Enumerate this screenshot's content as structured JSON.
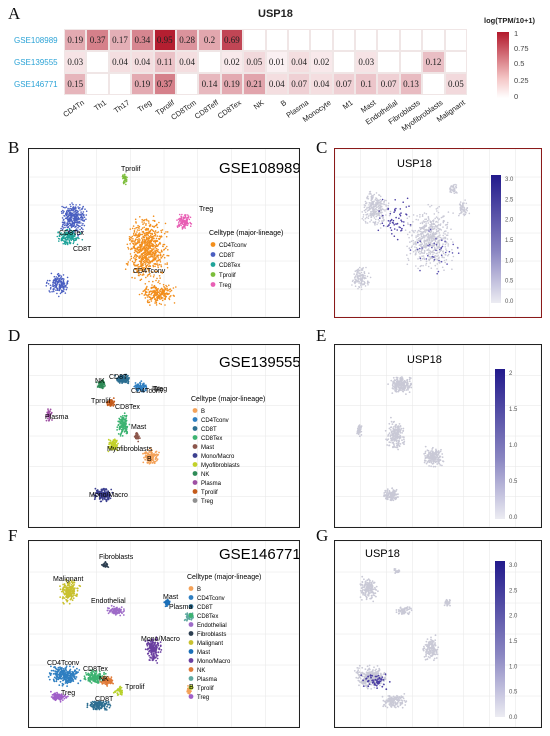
{
  "panel_letters": {
    "A": "A",
    "B": "B",
    "C": "C",
    "D": "D",
    "E": "E",
    "F": "F",
    "G": "G"
  },
  "heatmap": {
    "title": "USP18",
    "legend_title": "log(TPM/10+1)",
    "legend_ticks": [
      "1",
      "0.75",
      "0.5",
      "0.25",
      "0"
    ],
    "columns": [
      "CD4Tn",
      "Th1",
      "Th17",
      "Treg",
      "Tprolif",
      "CD8Tcm",
      "CD8Teff",
      "CD8Tex",
      "NK",
      "B",
      "Plasma",
      "Monocyte",
      "M1",
      "Mast",
      "Endothelial",
      "Fibroblasts",
      "Myofibroblasts",
      "Malignant"
    ],
    "rows": [
      {
        "name": "GSE108989",
        "values": [
          "0.19",
          "0.37",
          "0.17",
          "0.34",
          "0.95",
          "0.28",
          "0.2",
          "0.69",
          "",
          "",
          "",
          "",
          "",
          "",
          "",
          "",
          "",
          ""
        ]
      },
      {
        "name": "GSE139555",
        "values": [
          "0.03",
          "",
          "0.04",
          "0.04",
          "0.11",
          "0.04",
          "",
          "0.02",
          "0.05",
          "0.01",
          "0.04",
          "0.02",
          "",
          "0.03",
          "",
          "",
          "0.12",
          ""
        ]
      },
      {
        "name": "GSE146771",
        "values": [
          "0.15",
          "",
          "",
          "0.19",
          "0.37",
          "",
          "0.14",
          "0.19",
          "0.21",
          "0.04",
          "0.07",
          "0.04",
          "0.07",
          "0.1",
          "0.07",
          "0.13",
          "",
          "0.05"
        ]
      }
    ],
    "color_high": "#b2182b",
    "color_low": "#ffffff"
  },
  "panels": {
    "B": {
      "dataset": "GSE108989",
      "legend_title": "Celltype (major-lineage)",
      "legend": [
        {
          "label": "CD4Tconv",
          "color": "#f28e1c"
        },
        {
          "label": "CD8T",
          "color": "#4a5fc1"
        },
        {
          "label": "CD8Tex",
          "color": "#1fa39a"
        },
        {
          "label": "Tprolif",
          "color": "#7cbd3b"
        },
        {
          "label": "Treg",
          "color": "#e85fb4"
        }
      ],
      "cluster_labels": [
        "Tprolif",
        "Treg",
        "CD8Tex",
        "CD8T",
        "CD4Tconv"
      ]
    },
    "C": {
      "gene": "USP18",
      "ticks": [
        "3.0",
        "2.5",
        "2.0",
        "1.5",
        "1.0",
        "0.5",
        "0.0"
      ]
    },
    "D": {
      "dataset": "GSE139555",
      "legend_title": "Celltype (major-lineage)",
      "legend": [
        {
          "label": "B",
          "color": "#f4a259"
        },
        {
          "label": "CD4Tconv",
          "color": "#2f7fc1"
        },
        {
          "label": "CD8T",
          "color": "#2c6e91"
        },
        {
          "label": "CD8Tex",
          "color": "#3cb371"
        },
        {
          "label": "Mast",
          "color": "#8c564b"
        },
        {
          "label": "Mono/Macro",
          "color": "#3b3f8f"
        },
        {
          "label": "Myofibroblasts",
          "color": "#c2d12a"
        },
        {
          "label": "NK",
          "color": "#2e8b57"
        },
        {
          "label": "Plasma",
          "color": "#9e4fa3"
        },
        {
          "label": "Tprolif",
          "color": "#c45a1a"
        },
        {
          "label": "Treg",
          "color": "#8f8f8f"
        }
      ],
      "cluster_labels": [
        "Treg",
        "NK",
        "CD8T",
        "CD4Tconv",
        "Plasma",
        "Tprolif",
        "CD8Tex",
        "Mast",
        "Myofibroblasts",
        "B",
        "Mono/Macro"
      ]
    },
    "E": {
      "gene": "USP18",
      "ticks": [
        "2",
        "1.5",
        "1.0",
        "0.5",
        "0.0"
      ]
    },
    "F": {
      "dataset": "GSE146771",
      "legend_title": "Celltype (major-lineage)",
      "legend": [
        {
          "label": "B",
          "color": "#f4a259"
        },
        {
          "label": "CD4Tconv",
          "color": "#2f7fc1"
        },
        {
          "label": "CD8T",
          "color": "#2c6e91"
        },
        {
          "label": "CD8Tex",
          "color": "#3cb371"
        },
        {
          "label": "Endothelial",
          "color": "#9e6cc8"
        },
        {
          "label": "Fibroblasts",
          "color": "#2c3e50"
        },
        {
          "label": "Malignant",
          "color": "#c9c12f"
        },
        {
          "label": "Mast",
          "color": "#1a6fb8"
        },
        {
          "label": "Mono/Macro",
          "color": "#6a3fa0"
        },
        {
          "label": "NK",
          "color": "#e07b39"
        },
        {
          "label": "Plasma",
          "color": "#5fa8a0"
        },
        {
          "label": "Tprolif",
          "color": "#b8d12a"
        },
        {
          "label": "Treg",
          "color": "#a05fc8"
        }
      ],
      "cluster_labels": [
        "Fibroblasts",
        "Malignant",
        "Endothelial",
        "Mast",
        "Plasma",
        "Mono/Macro",
        "CD4Tconv",
        "CD8Tex",
        "NK",
        "Tprolif",
        "Treg",
        "CD8T",
        "B"
      ]
    },
    "G": {
      "gene": "USP18",
      "ticks": [
        "3.0",
        "2.5",
        "2.0",
        "1.5",
        "1.0",
        "0.5",
        "0.0"
      ]
    }
  }
}
